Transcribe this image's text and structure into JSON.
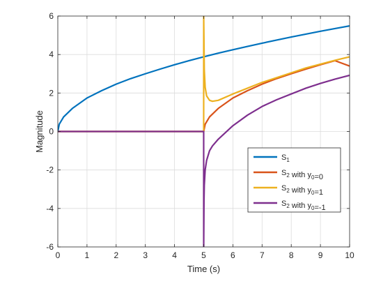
{
  "chart_data": {
    "type": "line",
    "title": "",
    "xlabel": "Time (s)",
    "ylabel": "Magnitude",
    "xlim": [
      0,
      10
    ],
    "ylim": [
      -6,
      6
    ],
    "xticks": [
      0,
      1,
      2,
      3,
      4,
      5,
      6,
      7,
      8,
      9,
      10
    ],
    "yticks": [
      -6,
      -4,
      -2,
      0,
      2,
      4,
      6
    ],
    "grid": true,
    "legend_position": "lower-right",
    "series": [
      {
        "name": "S_1",
        "label_base": "S",
        "label_sub": "1",
        "label_rest": "",
        "color": "#0072bd",
        "x": [
          0,
          0.05,
          0.2,
          0.5,
          1,
          1.5,
          2,
          2.5,
          3,
          3.5,
          4,
          4.5,
          5,
          5.5,
          6,
          6.5,
          7,
          7.5,
          8,
          8.5,
          9,
          9.5,
          10
        ],
        "y": [
          0,
          0.38,
          0.76,
          1.2,
          1.74,
          2.12,
          2.46,
          2.75,
          3.0,
          3.24,
          3.47,
          3.68,
          3.88,
          4.07,
          4.25,
          4.42,
          4.59,
          4.75,
          4.91,
          5.06,
          5.21,
          5.35,
          5.49
        ]
      },
      {
        "name": "S_2 with y_0=0",
        "label_base": "S",
        "label_sub": "2",
        "label_rest": " with y",
        "label_sub2": "0",
        "label_tail": "=0",
        "color": "#d95319",
        "x": [
          0,
          5,
          5.05,
          5.2,
          5.5,
          6,
          6.5,
          7,
          7.5,
          8,
          8.5,
          9,
          9.5,
          10
        ],
        "y": [
          0,
          0,
          0.38,
          0.76,
          1.2,
          1.74,
          2.12,
          2.46,
          2.75,
          3.0,
          3.24,
          3.47,
          3.68,
          3.4
        ]
      },
      {
        "name": "S_2 with y_0=1",
        "label_base": "S",
        "label_sub": "2",
        "label_rest": " with y",
        "label_sub2": "0",
        "label_tail": "=1",
        "color": "#edb120",
        "x": [
          0,
          4.999,
          5.0,
          5.02,
          5.05,
          5.1,
          5.2,
          5.3,
          5.5,
          6,
          6.5,
          7,
          7.5,
          8,
          8.5,
          9,
          9.5,
          10
        ],
        "y": [
          0,
          0,
          6,
          3.2,
          2.3,
          1.85,
          1.62,
          1.57,
          1.62,
          1.95,
          2.25,
          2.55,
          2.8,
          3.05,
          3.3,
          3.5,
          3.7,
          3.88
        ]
      },
      {
        "name": "S_2 with y_0=-1",
        "label_base": "S",
        "label_sub": "2",
        "label_rest": " with y",
        "label_sub2": "0",
        "label_tail": "=-1",
        "color": "#7e2f8e",
        "x": [
          0,
          4.999,
          5.0,
          5.01,
          5.02,
          5.05,
          5.1,
          5.2,
          5.3,
          5.5,
          6,
          6.5,
          7,
          7.5,
          8,
          8.5,
          9,
          9.5,
          10
        ],
        "y": [
          0,
          0,
          -6,
          -3.6,
          -2.8,
          -2.0,
          -1.5,
          -1.0,
          -0.75,
          -0.4,
          0.3,
          0.85,
          1.3,
          1.65,
          1.95,
          2.25,
          2.5,
          2.72,
          2.92
        ]
      }
    ]
  }
}
